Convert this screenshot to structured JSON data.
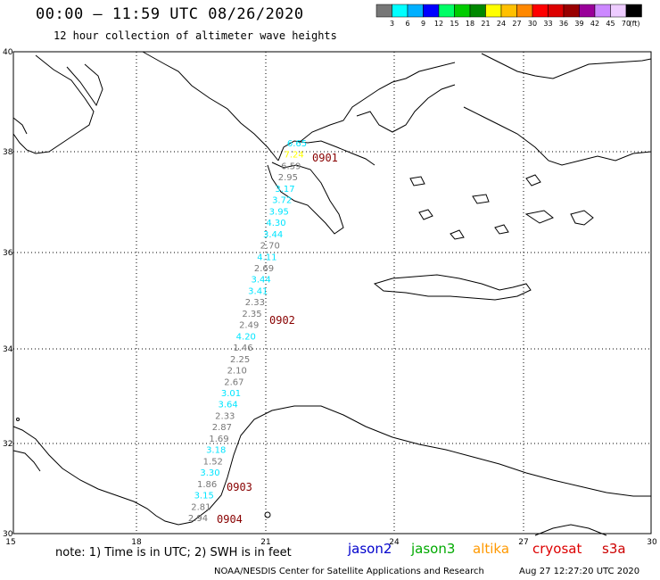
{
  "header": {
    "title": "00:00 – 11:59 UTC 08/26/2020",
    "subtitle": "12 hour collection of altimeter wave heights"
  },
  "colorbar": {
    "labels": [
      "3",
      "6",
      "9",
      "12",
      "15",
      "18",
      "21",
      "24",
      "27",
      "30",
      "33",
      "36",
      "39",
      "42",
      "45",
      "70"
    ],
    "unit": "(ft)",
    "colors": [
      "#777777",
      "#00ffff",
      "#00b0ff",
      "#0000ff",
      "#00ff66",
      "#00cc00",
      "#008800",
      "#ffff00",
      "#ffc000",
      "#ff8800",
      "#ff0000",
      "#dd0000",
      "#990000",
      "#990099",
      "#cc88ff",
      "#eeccff",
      "#000000"
    ]
  },
  "axes": {
    "lat_labels": [
      "40",
      "38",
      "36",
      "34",
      "32",
      "30"
    ],
    "lon_labels": [
      "15",
      "18",
      "21",
      "24",
      "27",
      "30"
    ]
  },
  "track": {
    "points": [
      {
        "v": "6.65",
        "c": "#00e5ff"
      },
      {
        "v": "7.24",
        "c": "#ffff00"
      },
      {
        "v": "6.59",
        "c": "#777777"
      },
      {
        "v": "2.95",
        "c": "#777777"
      },
      {
        "v": "3.17",
        "c": "#00e5ff"
      },
      {
        "v": "3.72",
        "c": "#00e5ff"
      },
      {
        "v": "3.95",
        "c": "#00e5ff"
      },
      {
        "v": "4.30",
        "c": "#00e5ff"
      },
      {
        "v": "3.44",
        "c": "#00e5ff"
      },
      {
        "v": "2.70",
        "c": "#777777"
      },
      {
        "v": "4.11",
        "c": "#00e5ff"
      },
      {
        "v": "2.69",
        "c": "#777777"
      },
      {
        "v": "3.44",
        "c": "#00e5ff"
      },
      {
        "v": "3.41",
        "c": "#00e5ff"
      },
      {
        "v": "2.33",
        "c": "#777777"
      },
      {
        "v": "2.35",
        "c": "#777777"
      },
      {
        "v": "2.49",
        "c": "#777777"
      },
      {
        "v": "4.20",
        "c": "#00e5ff"
      },
      {
        "v": "1.46",
        "c": "#777777"
      },
      {
        "v": "2.25",
        "c": "#777777"
      },
      {
        "v": "2.10",
        "c": "#777777"
      },
      {
        "v": "2.67",
        "c": "#777777"
      },
      {
        "v": "3.01",
        "c": "#00e5ff"
      },
      {
        "v": "3.64",
        "c": "#00e5ff"
      },
      {
        "v": "2.33",
        "c": "#777777"
      },
      {
        "v": "2.87",
        "c": "#777777"
      },
      {
        "v": "1.69",
        "c": "#777777"
      },
      {
        "v": "3.18",
        "c": "#00e5ff"
      },
      {
        "v": "1.52",
        "c": "#777777"
      },
      {
        "v": "3.30",
        "c": "#00e5ff"
      },
      {
        "v": "1.86",
        "c": "#777777"
      },
      {
        "v": "3.15",
        "c": "#00e5ff"
      },
      {
        "v": "2.81",
        "c": "#777777"
      },
      {
        "v": "2.94",
        "c": "#777777"
      }
    ],
    "time_labels": [
      "0901",
      "0902",
      "0903",
      "0904"
    ]
  },
  "note": "note: 1) Time is in UTC; 2) SWH is in feet",
  "satellites": [
    {
      "name": "jason2",
      "color": "#0000cc"
    },
    {
      "name": "jason3",
      "color": "#00aa00"
    },
    {
      "name": "altika",
      "color": "#ff9900"
    },
    {
      "name": "cryosat",
      "color": "#dd0000"
    },
    {
      "name": "s3a",
      "color": "#cc0000"
    }
  ],
  "footer": {
    "left": "NOAA/NESDIS Center for Satellite Applications and Research",
    "right": "Aug 27 12:27:20 UTC 2020"
  }
}
